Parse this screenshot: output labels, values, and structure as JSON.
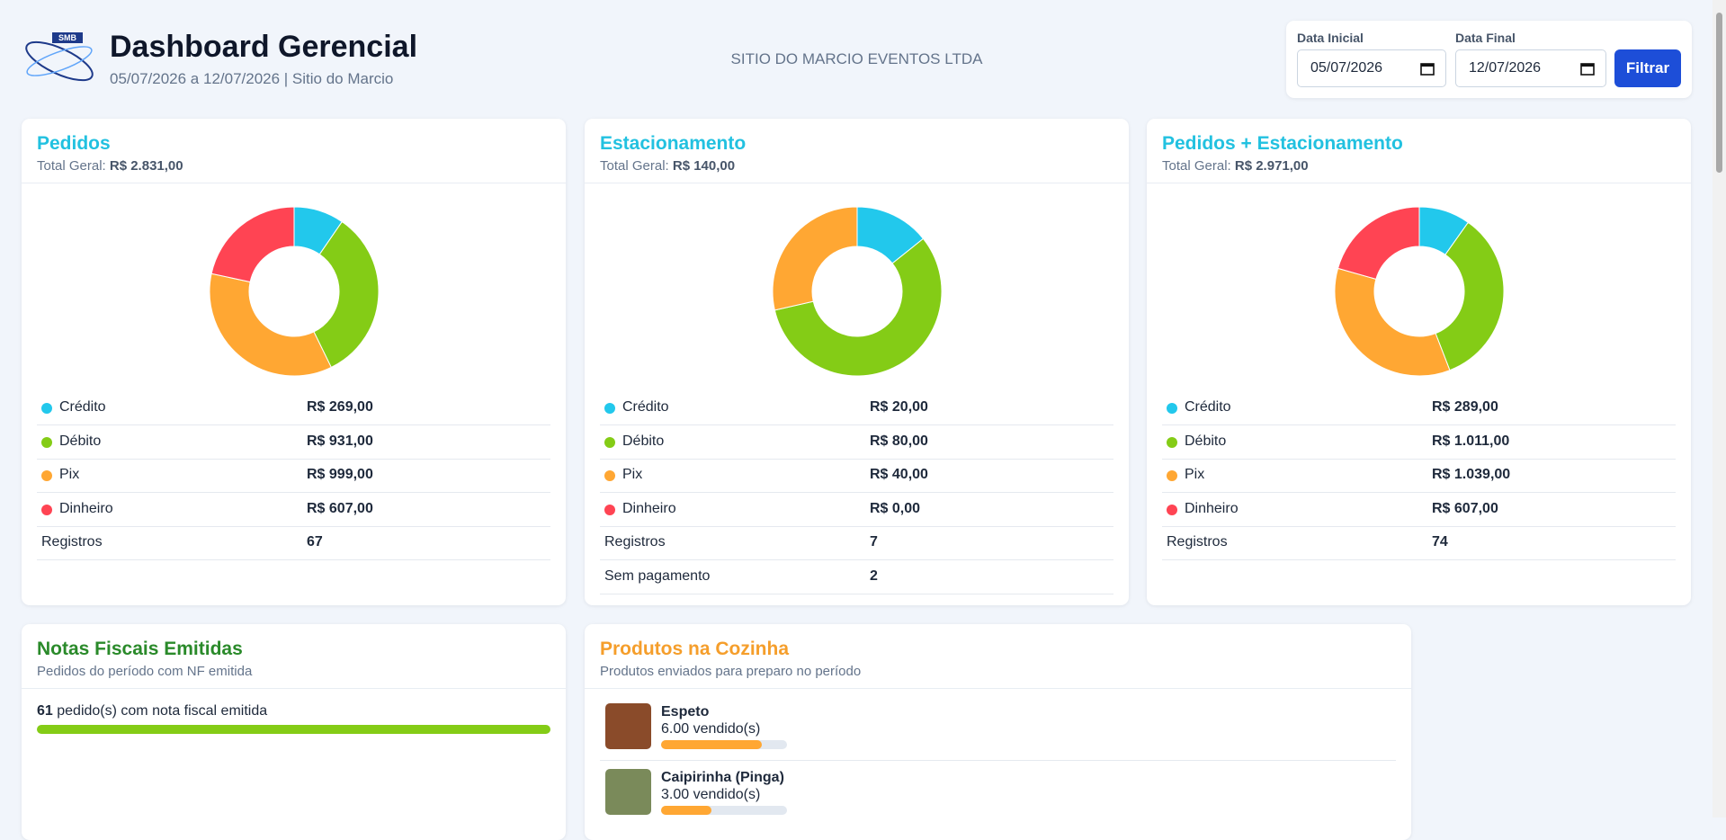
{
  "header": {
    "title": "Dashboard Gerencial",
    "subtitle": "05/07/2026 a 12/07/2026 | Sitio do Marcio",
    "company": "SITIO DO MARCIO EVENTOS LTDA",
    "logo_text": "SMB"
  },
  "filter": {
    "start_label": "Data Inicial",
    "start_value": "05/07/2026",
    "end_label": "Data Final",
    "end_value": "12/07/2026",
    "button": "Filtrar"
  },
  "cards": [
    {
      "title": "Pedidos",
      "total_label": "Total Geral:",
      "total": "R$ 2.831,00",
      "type": "donut",
      "categories": [
        "Crédito",
        "Débito",
        "Pix",
        "Dinheiro"
      ],
      "colors": [
        "#22c8ec",
        "#84cc16",
        "#ffa733",
        "#ff4453"
      ],
      "values": [
        269,
        931,
        999,
        607
      ],
      "value_labels": [
        "R$ 269,00",
        "R$ 931,00",
        "R$ 999,00",
        "R$ 607,00"
      ],
      "extra_rows": [
        [
          "Registros",
          "67"
        ]
      ]
    },
    {
      "title": "Estacionamento",
      "total_label": "Total Geral:",
      "total": "R$ 140,00",
      "type": "donut",
      "categories": [
        "Crédito",
        "Débito",
        "Pix",
        "Dinheiro"
      ],
      "colors": [
        "#22c8ec",
        "#84cc16",
        "#ffa733",
        "#ff4453"
      ],
      "values": [
        20,
        80,
        40,
        0
      ],
      "value_labels": [
        "R$ 20,00",
        "R$ 80,00",
        "R$ 40,00",
        "R$ 0,00"
      ],
      "extra_rows": [
        [
          "Registros",
          "7"
        ],
        [
          "Sem pagamento",
          "2"
        ]
      ]
    },
    {
      "title": "Pedidos + Estacionamento",
      "total_label": "Total Geral:",
      "total": "R$ 2.971,00",
      "type": "donut",
      "categories": [
        "Crédito",
        "Débito",
        "Pix",
        "Dinheiro"
      ],
      "colors": [
        "#22c8ec",
        "#84cc16",
        "#ffa733",
        "#ff4453"
      ],
      "values": [
        289,
        1011,
        1039,
        607
      ],
      "value_labels": [
        "R$ 289,00",
        "R$ 1.011,00",
        "R$ 1.039,00",
        "R$ 607,00"
      ],
      "extra_rows": [
        [
          "Registros",
          "74"
        ]
      ]
    }
  ],
  "invoices": {
    "title": "Notas Fiscais Emitidas",
    "subtitle": "Pedidos do período com NF emitida",
    "count": 61,
    "text": "pedido(s) com nota fiscal emitida"
  },
  "kitchen": {
    "title": "Produtos na Cozinha",
    "subtitle": "Produtos enviados para preparo no período",
    "items": [
      {
        "name": "Espeto",
        "sold": 6,
        "sold_label": "6.00 vendido(s)"
      },
      {
        "name": "Caipirinha (Pinga)",
        "sold": 3,
        "sold_label": "3.00 vendido(s)"
      }
    ]
  }
}
